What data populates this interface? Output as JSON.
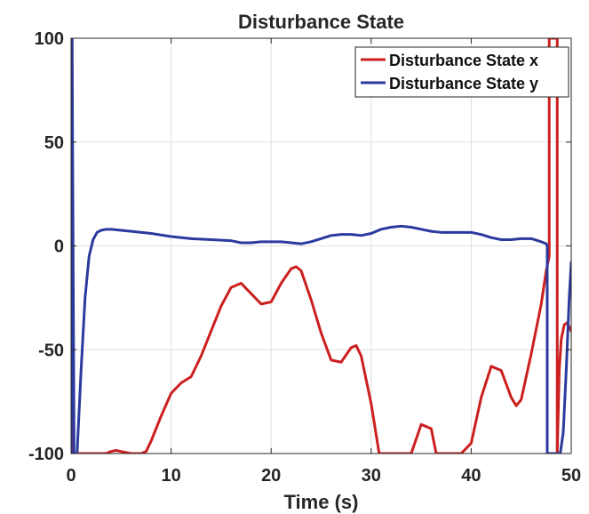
{
  "chart_data": {
    "type": "line",
    "title": "Disturbance State",
    "xlabel": "Time (s)",
    "ylabel": "",
    "xlim": [
      0,
      50
    ],
    "ylim": [
      -100,
      100
    ],
    "x_ticks": [
      0,
      10,
      20,
      30,
      40,
      50
    ],
    "y_ticks": [
      -100,
      -50,
      0,
      50,
      100
    ],
    "x_tick_labels": [
      "0",
      "10",
      "20",
      "30",
      "40",
      "50"
    ],
    "y_tick_labels": [
      "-100",
      "-50",
      "0",
      "50",
      "100"
    ],
    "grid": true,
    "legend_position": "top-right",
    "series": [
      {
        "name": "Disturbance State x",
        "color": "#cc1f1f",
        "x": [
          0,
          0.1,
          0.2,
          0.5,
          2,
          3,
          3.5,
          4,
          4.5,
          5,
          6,
          7,
          7.5,
          8,
          9,
          10,
          11,
          12,
          13,
          14,
          15,
          16,
          17,
          18,
          19,
          20,
          21,
          22,
          22.5,
          23,
          24,
          25,
          26,
          27,
          28,
          28.5,
          29,
          30,
          30.8,
          31,
          32,
          33,
          34,
          35,
          36,
          36.5,
          37,
          38,
          38.9,
          39,
          40,
          41,
          42,
          43,
          44,
          44.5,
          45,
          46,
          47,
          47.5,
          47.8,
          47.8,
          48,
          48.3,
          48.5,
          48.6,
          48.6,
          48.8,
          49,
          49.3,
          49.6,
          50
        ],
        "y": [
          -100,
          100,
          -100,
          -100,
          -100,
          -100,
          -100,
          -99,
          -98.5,
          -99,
          -100,
          -100,
          -99,
          -94,
          -82,
          -71,
          -66,
          -63,
          -53,
          -41,
          -29,
          -20,
          -18,
          -23,
          -28,
          -27,
          -18,
          -11,
          -10,
          -12,
          -26,
          -42,
          -55,
          -56,
          -49,
          -48,
          -53,
          -76,
          -100,
          -100,
          -100,
          -100,
          -100,
          -86,
          -88,
          -100,
          -100,
          -100,
          -100,
          -100,
          -95,
          -73,
          -58,
          -60,
          -73,
          -77,
          -74,
          -52,
          -28,
          -12,
          -5,
          100,
          100,
          100,
          100,
          100,
          -100,
          -60,
          -45,
          -38,
          -37,
          -41
        ]
      },
      {
        "name": "Disturbance State y",
        "color": "#2b3a9e",
        "x": [
          0,
          0.1,
          0.3,
          0.6,
          1.0,
          1.4,
          1.8,
          2.2,
          2.6,
          3,
          3.5,
          4,
          5,
          6,
          8,
          10,
          12,
          14,
          16,
          17,
          18,
          19,
          20,
          21,
          22,
          23,
          24,
          25,
          26,
          27,
          28,
          29,
          30,
          31,
          32,
          33,
          34,
          35,
          36,
          37,
          38,
          39,
          40,
          41,
          42,
          43,
          44,
          45,
          46,
          47,
          47.5,
          47.6,
          47.6,
          48.0,
          48.4,
          48.8,
          48.9,
          49.2,
          49.5,
          49.8,
          50
        ],
        "y": [
          -100,
          100,
          -100,
          -100,
          -60,
          -25,
          -5,
          3,
          6.5,
          7.5,
          8,
          8,
          7.5,
          7,
          6,
          4.5,
          3.5,
          3,
          2.5,
          1.5,
          1.5,
          2,
          2,
          2,
          1.5,
          1,
          2,
          3.5,
          5,
          5.5,
          5.5,
          5,
          6,
          8,
          9,
          9.5,
          9,
          8,
          7,
          6.5,
          6.5,
          6.5,
          6.5,
          5.5,
          4,
          3,
          3,
          3.5,
          3.5,
          2,
          1,
          0,
          -100,
          -100,
          -100,
          -100,
          -100,
          -90,
          -60,
          -25,
          -8
        ]
      }
    ]
  }
}
